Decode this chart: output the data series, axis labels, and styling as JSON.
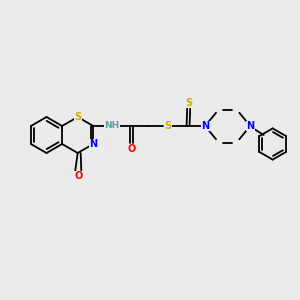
{
  "bg_color": "#ebebeb",
  "bond_color": "#000000",
  "atom_colors": {
    "S": "#c8b400",
    "N": "#0000ff",
    "O": "#ff0000",
    "H": "#5f9ea0",
    "C": "#000000"
  }
}
